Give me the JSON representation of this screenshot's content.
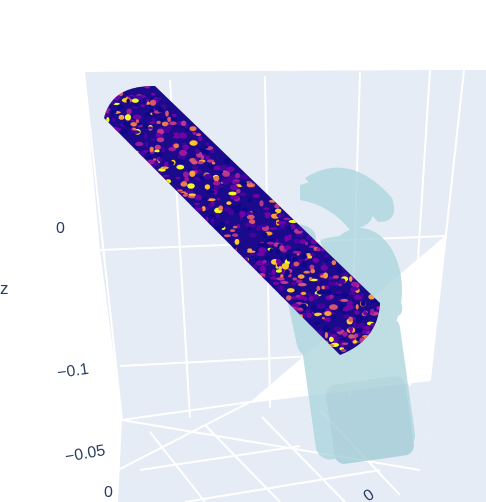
{
  "chart_data": {
    "type": "scatter3d",
    "axes": {
      "x": {
        "title": "",
        "tick_labels": [
          "0"
        ]
      },
      "y": {
        "title": "",
        "tick_labels": [
          "0",
          "−0.05"
        ]
      },
      "z": {
        "title": "z",
        "tick_labels": [
          "0",
          "−0.1"
        ]
      }
    },
    "grid": true,
    "colorscale": [
      "#0d0887",
      "#46039f",
      "#7201a8",
      "#9c179e",
      "#bd3786",
      "#d8576b",
      "#ed7953",
      "#fb9f3a",
      "#fdca26",
      "#f0f921"
    ],
    "background_color": "#e5ecf6",
    "mesh_color": "#a9d4dc",
    "traces": [
      {
        "name": "",
        "kind": "point-cloud cylinder",
        "marker_colorscale": "Plasma"
      },
      {
        "name": "",
        "kind": "mesh hand",
        "opacity": 0.6
      }
    ]
  }
}
